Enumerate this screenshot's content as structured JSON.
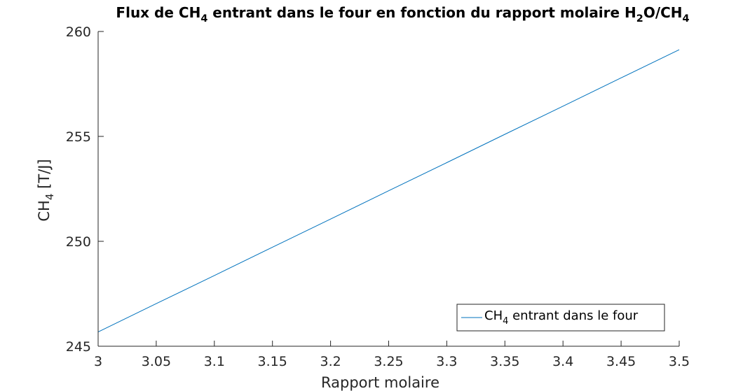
{
  "chart_data": {
    "type": "line",
    "title": {
      "parts": [
        {
          "text": "Flux de CH",
          "sub": false
        },
        {
          "text": "4",
          "sub": true
        },
        {
          "text": " entrant dans le four en fonction du rapport molaire H",
          "sub": false
        },
        {
          "text": "2",
          "sub": true
        },
        {
          "text": "O/CH",
          "sub": false
        },
        {
          "text": "4",
          "sub": true
        }
      ]
    },
    "xlabel": "Rapport molaire",
    "ylabel": {
      "parts": [
        {
          "text": "CH",
          "sub": false
        },
        {
          "text": "4",
          "sub": true
        },
        {
          "text": " [T/J]",
          "sub": false
        }
      ]
    },
    "xlim": [
      3,
      3.5
    ],
    "ylim": [
      245,
      260
    ],
    "xticks": [
      3,
      3.05,
      3.1,
      3.15,
      3.2,
      3.25,
      3.3,
      3.35,
      3.4,
      3.45,
      3.5
    ],
    "xtick_labels": [
      "3",
      "3.05",
      "3.1",
      "3.15",
      "3.2",
      "3.25",
      "3.3",
      "3.35",
      "3.4",
      "3.45",
      "3.5"
    ],
    "yticks": [
      245,
      250,
      255,
      260
    ],
    "ytick_labels": [
      "245",
      "250",
      "255",
      "260"
    ],
    "grid": false,
    "legend_position": "bottom-right",
    "series": [
      {
        "name_parts": [
          {
            "text": "CH",
            "sub": false
          },
          {
            "text": "4",
            "sub": true
          },
          {
            "text": " entrant dans le four",
            "sub": false
          }
        ],
        "color": "#0072BD",
        "x": [
          3.0,
          3.05,
          3.1,
          3.15,
          3.2,
          3.25,
          3.3,
          3.35,
          3.4,
          3.45,
          3.5
        ],
        "y": [
          245.68,
          247.03,
          248.37,
          249.72,
          251.06,
          252.41,
          253.75,
          255.1,
          256.44,
          257.79,
          259.13
        ]
      }
    ]
  }
}
